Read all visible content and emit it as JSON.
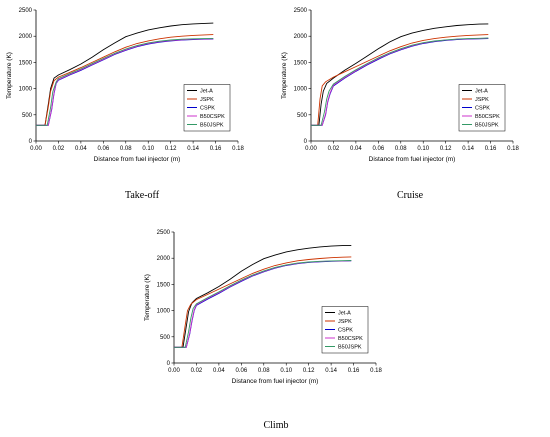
{
  "chart_data": [
    {
      "type": "line",
      "caption": "Take-off",
      "xlabel": "Distance from fuel injector (m)",
      "ylabel": "Temperature (K)",
      "xlim": [
        0,
        0.18
      ],
      "ylim": [
        0,
        2500
      ],
      "xticks": [
        "0.00",
        "0.02",
        "0.04",
        "0.06",
        "0.08",
        "0.10",
        "0.12",
        "0.14",
        "0.16",
        "0.18"
      ],
      "yticks": [
        "0",
        "500",
        "1000",
        "1500",
        "2000",
        "2500"
      ],
      "legend_position": "lower-right",
      "series": [
        {
          "name": "Jet-A",
          "color": "#000000",
          "x": [
            0,
            0.008,
            0.011,
            0.013,
            0.016,
            0.02,
            0.03,
            0.04,
            0.05,
            0.06,
            0.07,
            0.08,
            0.09,
            0.1,
            0.11,
            0.12,
            0.13,
            0.14,
            0.15,
            0.158
          ],
          "y": [
            300,
            300,
            700,
            1000,
            1200,
            1260,
            1360,
            1470,
            1600,
            1740,
            1870,
            1990,
            2060,
            2120,
            2160,
            2195,
            2220,
            2235,
            2245,
            2250
          ]
        },
        {
          "name": "JSPK",
          "color": "#cc3300",
          "x": [
            0,
            0.008,
            0.011,
            0.013,
            0.016,
            0.02,
            0.03,
            0.04,
            0.05,
            0.06,
            0.07,
            0.08,
            0.09,
            0.1,
            0.11,
            0.12,
            0.13,
            0.14,
            0.15,
            0.158
          ],
          "y": [
            300,
            300,
            650,
            950,
            1150,
            1220,
            1310,
            1400,
            1500,
            1600,
            1700,
            1790,
            1860,
            1910,
            1950,
            1980,
            2000,
            2015,
            2025,
            2030
          ]
        },
        {
          "name": "CSPK",
          "color": "#0000cc",
          "x": [
            0,
            0.011,
            0.014,
            0.016,
            0.018,
            0.02,
            0.03,
            0.04,
            0.05,
            0.06,
            0.07,
            0.08,
            0.09,
            0.1,
            0.11,
            0.12,
            0.13,
            0.14,
            0.15,
            0.158
          ],
          "y": [
            300,
            300,
            600,
            900,
            1100,
            1160,
            1260,
            1350,
            1450,
            1550,
            1650,
            1730,
            1800,
            1850,
            1885,
            1910,
            1925,
            1935,
            1942,
            1945
          ]
        },
        {
          "name": "B50CSPK",
          "color": "#cc33cc",
          "x": [
            0,
            0.011,
            0.014,
            0.016,
            0.018,
            0.02,
            0.03,
            0.04,
            0.05,
            0.06,
            0.07,
            0.08,
            0.09,
            0.1,
            0.11,
            0.12,
            0.13,
            0.14,
            0.15,
            0.158
          ],
          "y": [
            300,
            300,
            620,
            920,
            1110,
            1170,
            1270,
            1360,
            1460,
            1560,
            1660,
            1740,
            1810,
            1860,
            1895,
            1918,
            1932,
            1942,
            1948,
            1950
          ]
        },
        {
          "name": "B50JSPK",
          "color": "#339966",
          "x": [
            0,
            0.01,
            0.013,
            0.015,
            0.018,
            0.02,
            0.03,
            0.04,
            0.05,
            0.06,
            0.07,
            0.08,
            0.09,
            0.1,
            0.11,
            0.12,
            0.13,
            0.14,
            0.15,
            0.158
          ],
          "y": [
            300,
            300,
            640,
            940,
            1130,
            1190,
            1285,
            1375,
            1475,
            1575,
            1672,
            1755,
            1822,
            1872,
            1905,
            1928,
            1942,
            1950,
            1955,
            1958
          ]
        }
      ]
    },
    {
      "type": "line",
      "caption": "Cruise",
      "xlabel": "Distance from fuel injector (m)",
      "ylabel": "Temperature (K)",
      "xlim": [
        0,
        0.18
      ],
      "ylim": [
        0,
        2500
      ],
      "xticks": [
        "0.00",
        "0.02",
        "0.04",
        "0.06",
        "0.08",
        "0.10",
        "0.12",
        "0.14",
        "0.16",
        "0.18"
      ],
      "yticks": [
        "0",
        "500",
        "1000",
        "1500",
        "2000",
        "2500"
      ],
      "legend_position": "lower-right",
      "series": [
        {
          "name": "Jet-A",
          "color": "#000000",
          "x": [
            0,
            0.007,
            0.009,
            0.011,
            0.014,
            0.02,
            0.03,
            0.04,
            0.05,
            0.06,
            0.07,
            0.08,
            0.09,
            0.1,
            0.11,
            0.12,
            0.13,
            0.14,
            0.15,
            0.158
          ],
          "y": [
            300,
            300,
            700,
            950,
            1100,
            1200,
            1350,
            1480,
            1620,
            1760,
            1890,
            1990,
            2060,
            2110,
            2150,
            2180,
            2205,
            2220,
            2230,
            2235
          ]
        },
        {
          "name": "JSPK",
          "color": "#cc3300",
          "x": [
            0,
            0.006,
            0.008,
            0.01,
            0.013,
            0.02,
            0.03,
            0.04,
            0.05,
            0.06,
            0.07,
            0.08,
            0.09,
            0.1,
            0.11,
            0.12,
            0.13,
            0.14,
            0.15,
            0.158
          ],
          "y": [
            300,
            300,
            800,
            1050,
            1130,
            1220,
            1320,
            1420,
            1520,
            1620,
            1720,
            1800,
            1870,
            1920,
            1955,
            1980,
            2000,
            2015,
            2025,
            2030
          ]
        },
        {
          "name": "CSPK",
          "color": "#0000cc",
          "x": [
            0,
            0.01,
            0.013,
            0.015,
            0.017,
            0.02,
            0.03,
            0.04,
            0.05,
            0.06,
            0.07,
            0.08,
            0.09,
            0.1,
            0.11,
            0.12,
            0.13,
            0.14,
            0.15,
            0.158
          ],
          "y": [
            300,
            300,
            500,
            750,
            900,
            1050,
            1200,
            1330,
            1450,
            1560,
            1660,
            1740,
            1810,
            1860,
            1895,
            1920,
            1935,
            1945,
            1950,
            1955
          ]
        },
        {
          "name": "B50CSPK",
          "color": "#cc33cc",
          "x": [
            0,
            0.01,
            0.013,
            0.015,
            0.017,
            0.02,
            0.03,
            0.04,
            0.05,
            0.06,
            0.07,
            0.08,
            0.09,
            0.1,
            0.11,
            0.12,
            0.13,
            0.14,
            0.15,
            0.158
          ],
          "y": [
            300,
            300,
            520,
            770,
            920,
            1065,
            1212,
            1342,
            1462,
            1572,
            1670,
            1750,
            1818,
            1868,
            1902,
            1926,
            1940,
            1950,
            1955,
            1960
          ]
        },
        {
          "name": "B50JSPK",
          "color": "#339966",
          "x": [
            0,
            0.009,
            0.012,
            0.014,
            0.016,
            0.02,
            0.03,
            0.04,
            0.05,
            0.06,
            0.07,
            0.08,
            0.09,
            0.1,
            0.11,
            0.12,
            0.13,
            0.14,
            0.15,
            0.158
          ],
          "y": [
            300,
            300,
            560,
            800,
            950,
            1085,
            1230,
            1358,
            1478,
            1586,
            1682,
            1762,
            1828,
            1876,
            1908,
            1930,
            1944,
            1954,
            1960,
            1965
          ]
        }
      ]
    },
    {
      "type": "line",
      "caption": "Climb",
      "xlabel": "Distance from fuel injector (m)",
      "ylabel": "Temperature (K)",
      "xlim": [
        0,
        0.18
      ],
      "ylim": [
        0,
        2500
      ],
      "xticks": [
        "0.00",
        "0.02",
        "0.04",
        "0.06",
        "0.08",
        "0.10",
        "0.12",
        "0.14",
        "0.16",
        "0.18"
      ],
      "yticks": [
        "0",
        "500",
        "1000",
        "1500",
        "2000",
        "2500"
      ],
      "legend_position": "lower-right",
      "series": [
        {
          "name": "Jet-A",
          "color": "#000000",
          "x": [
            0,
            0.008,
            0.011,
            0.013,
            0.016,
            0.02,
            0.03,
            0.04,
            0.05,
            0.06,
            0.07,
            0.08,
            0.09,
            0.1,
            0.11,
            0.12,
            0.13,
            0.14,
            0.15,
            0.158
          ],
          "y": [
            300,
            300,
            700,
            980,
            1150,
            1230,
            1340,
            1460,
            1600,
            1750,
            1880,
            1990,
            2060,
            2120,
            2160,
            2190,
            2215,
            2230,
            2240,
            2245
          ]
        },
        {
          "name": "JSPK",
          "color": "#cc3300",
          "x": [
            0,
            0.007,
            0.01,
            0.012,
            0.015,
            0.02,
            0.03,
            0.04,
            0.05,
            0.06,
            0.07,
            0.08,
            0.09,
            0.1,
            0.11,
            0.12,
            0.13,
            0.14,
            0.15,
            0.158
          ],
          "y": [
            300,
            300,
            720,
            1000,
            1120,
            1210,
            1310,
            1410,
            1510,
            1610,
            1710,
            1790,
            1860,
            1910,
            1950,
            1975,
            1995,
            2010,
            2020,
            2025
          ]
        },
        {
          "name": "CSPK",
          "color": "#0000cc",
          "x": [
            0,
            0.011,
            0.014,
            0.016,
            0.018,
            0.02,
            0.03,
            0.04,
            0.05,
            0.06,
            0.07,
            0.08,
            0.09,
            0.1,
            0.11,
            0.12,
            0.13,
            0.14,
            0.15,
            0.158
          ],
          "y": [
            300,
            300,
            550,
            800,
            1000,
            1100,
            1220,
            1330,
            1450,
            1560,
            1660,
            1740,
            1810,
            1860,
            1895,
            1920,
            1932,
            1940,
            1945,
            1950
          ]
        },
        {
          "name": "B50CSPK",
          "color": "#cc33cc",
          "x": [
            0,
            0.011,
            0.014,
            0.016,
            0.018,
            0.02,
            0.03,
            0.04,
            0.05,
            0.06,
            0.07,
            0.08,
            0.09,
            0.1,
            0.11,
            0.12,
            0.13,
            0.14,
            0.15,
            0.158
          ],
          "y": [
            300,
            300,
            570,
            820,
            1015,
            1112,
            1232,
            1342,
            1460,
            1570,
            1668,
            1748,
            1816,
            1866,
            1900,
            1924,
            1936,
            1944,
            1948,
            1952
          ]
        },
        {
          "name": "B50JSPK",
          "color": "#339966",
          "x": [
            0,
            0.01,
            0.013,
            0.015,
            0.017,
            0.02,
            0.03,
            0.04,
            0.05,
            0.06,
            0.07,
            0.08,
            0.09,
            0.1,
            0.11,
            0.12,
            0.13,
            0.14,
            0.15,
            0.158
          ],
          "y": [
            300,
            300,
            600,
            850,
            1040,
            1130,
            1248,
            1356,
            1474,
            1582,
            1678,
            1757,
            1824,
            1873,
            1906,
            1928,
            1940,
            1948,
            1953,
            1957
          ]
        }
      ]
    }
  ]
}
